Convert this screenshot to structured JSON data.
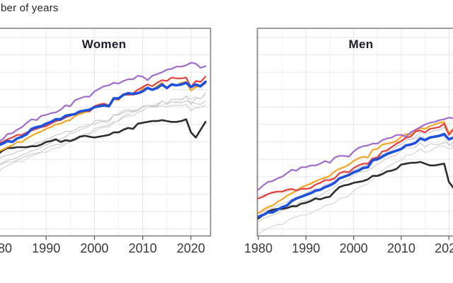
{
  "title": "ber of years",
  "panel_border_color": "#7d7d7d",
  "grid_color_major": "#e6e6e6",
  "grid_color_minor": "#f2f2f2",
  "tick_color": "#555555",
  "chart_data": {
    "type": "line",
    "title": "ber of years",
    "x_axis": {
      "tick_labels": [
        "1980",
        "1990",
        "2000",
        "2010",
        "2020"
      ],
      "range": [
        1980,
        2023
      ]
    },
    "y_axis": {
      "label_visible": false,
      "unit": "years",
      "gridline_step_years": 2
    },
    "legend_visible": false,
    "years": [
      1980,
      1981,
      1982,
      1983,
      1984,
      1985,
      1986,
      1987,
      1988,
      1989,
      1990,
      1991,
      1992,
      1993,
      1994,
      1995,
      1996,
      1997,
      1998,
      1999,
      2000,
      2001,
      2002,
      2003,
      2004,
      2005,
      2006,
      2007,
      2008,
      2009,
      2010,
      2011,
      2012,
      2013,
      2014,
      2015,
      2016,
      2017,
      2018,
      2019,
      2020,
      2021,
      2022,
      2023
    ],
    "facets": [
      {
        "name": "Women",
        "series": [
          {
            "name": "gray-line-1",
            "color": "#c7c7c7",
            "width": 1.1,
            "values": [
              76.2,
              76.4,
              76.7,
              76.8,
              77.0,
              77.3,
              77.5,
              77.8,
              77.9,
              78.2,
              78.5,
              78.7,
              79.0,
              79.1,
              79.4,
              79.8,
              79.9,
              80.2,
              80.4,
              80.6,
              81.2,
              81.3,
              81.2,
              81.3,
              81.9,
              82.0,
              82.4,
              82.5,
              82.4,
              82.5,
              82.9,
              83.0,
              82.9,
              82.9,
              83.5,
              83.1,
              83.4,
              83.3,
              83.3,
              83.5,
              83.4,
              83.2,
              83.1,
              83.5
            ]
          },
          {
            "name": "gray-line-2",
            "color": "#cccccc",
            "width": 1.1,
            "values": [
              76.0,
              76.3,
              76.5,
              76.5,
              76.7,
              77.0,
              77.2,
              77.4,
              77.5,
              77.7,
              78.1,
              78.3,
              78.5,
              78.5,
              78.9,
              79.0,
              79.3,
              79.5,
              79.7,
              79.8,
              80.3,
              80.5,
              80.6,
              80.7,
              81.1,
              81.2,
              81.6,
              81.8,
              81.8,
              82.2,
              82.4,
              82.8,
              82.8,
              82.8,
              83.0,
              82.8,
              83.0,
              83.0,
              83.0,
              83.1,
              82.4,
              82.7,
              82.8,
              83.0
            ]
          },
          {
            "name": "gray-line-3",
            "color": "#c7c7c7",
            "width": 1.1,
            "values": [
              76.8,
              77.1,
              77.3,
              77.4,
              77.7,
              77.8,
              78.1,
              78.4,
              78.6,
              78.8,
              79.1,
              79.3,
              79.6,
              79.7,
              80.0,
              80.0,
              80.2,
              80.5,
              80.6,
              80.8,
              80.8,
              81.1,
              81.1,
              81.1,
              81.9,
              81.9,
              82.2,
              82.3,
              82.3,
              82.5,
              82.8,
              83.0,
              82.9,
              83.0,
              83.5,
              83.2,
              83.7,
              83.7,
              83.7,
              84.0,
              83.1,
              83.8,
              83.8,
              84.2
            ]
          },
          {
            "name": "gray-line-4",
            "color": "#d2d2d2",
            "width": 1.1,
            "values": [
              75.2,
              75.8,
              76.1,
              76.3,
              76.6,
              76.5,
              76.9,
              77.2,
              77.4,
              77.6,
              77.6,
              77.9,
              78.1,
              78.2,
              78.6,
              78.8,
              79.0,
              79.4,
              79.5,
              79.7,
              80.0,
              80.3,
              80.5,
              80.5,
              81.0,
              81.3,
              81.8,
              82.0,
              82.2,
              82.4,
              82.8,
              83.0,
              83.0,
              83.2,
              83.5,
              83.2,
              83.4,
              83.4,
              83.5,
              84.1,
              83.7,
              84.0,
              83.7,
              84.5
            ]
          },
          {
            "name": "black-line",
            "color": "#2d2d2d",
            "width": 2.6,
            "values": [
              77.4,
              77.8,
              78.1,
              78.1,
              78.2,
              78.2,
              78.2,
              78.3,
              78.3,
              78.5,
              78.8,
              78.9,
              79.1,
              78.8,
              79.0,
              78.9,
              79.1,
              79.4,
              79.5,
              79.4,
              79.3,
              79.4,
              79.5,
              79.6,
              79.9,
              79.9,
              80.2,
              80.4,
              80.3,
              80.9,
              81.0,
              81.1,
              81.2,
              81.2,
              81.3,
              81.2,
              81.1,
              81.1,
              81.2,
              81.4,
              79.9,
              79.3,
              80.2,
              81.1
            ]
          },
          {
            "name": "orange-line",
            "color": "#f5a522",
            "width": 2.2,
            "values": [
              77.7,
              77.9,
              78.2,
              78.4,
              78.8,
              78.8,
              79.2,
              79.5,
              79.8,
              80.0,
              80.3,
              80.5,
              80.8,
              80.9,
              81.2,
              81.3,
              81.8,
              82.0,
              82.2,
              82.3,
              82.8,
              83.0,
              83.1,
              82.9,
              83.8,
              83.6,
              84.2,
              84.2,
              84.2,
              84.4,
              84.9,
              85.0,
              84.8,
              85.2,
              85.6,
              84.9,
              85.5,
              85.3,
              85.6,
              85.7,
              84.7,
              85.1,
              85.2,
              85.5
            ]
          },
          {
            "name": "red-line",
            "color": "#e3403c",
            "width": 2.2,
            "values": [
              78.6,
              78.8,
              79.1,
              79.3,
              79.6,
              79.6,
              79.9,
              80.1,
              80.3,
              80.5,
              80.6,
              80.9,
              81.2,
              81.3,
              81.6,
              81.8,
              82.0,
              82.2,
              82.4,
              82.3,
              82.9,
              83.1,
              83.2,
              83.0,
              83.7,
              83.7,
              84.3,
              84.2,
              84.4,
              84.8,
              85.1,
              85.4,
              85.2,
              85.6,
              85.9,
              85.8,
              86.2,
              86.1,
              86.1,
              86.2,
              85.1,
              85.8,
              85.7,
              86.3
            ]
          },
          {
            "name": "purple-line",
            "color": "#a06ccb",
            "width": 2.2,
            "values": [
              78.8,
              79.1,
              79.7,
              79.8,
              80.2,
              80.5,
              81.0,
              81.4,
              81.3,
              81.8,
              81.9,
              82.1,
              82.2,
              82.5,
              83.0,
              82.9,
              83.6,
              83.8,
              84.0,
              84.0,
              84.6,
              84.9,
              85.2,
              85.3,
              85.6,
              85.5,
              85.8,
              86.0,
              86.0,
              86.4,
              86.3,
              85.9,
              86.4,
              86.6,
              86.8,
              87.1,
              87.2,
              87.45,
              87.45,
              87.6,
              87.9,
              87.8,
              87.3,
              87.5
            ]
          },
          {
            "name": "blue-thick-line",
            "color": "#1d50dc",
            "width": 3.6,
            "values": [
              78.4,
              78.6,
              78.9,
              78.8,
              79.2,
              79.4,
              79.7,
              80.3,
              80.5,
              80.6,
              80.9,
              81.1,
              81.4,
              81.4,
              81.8,
              81.9,
              82.0,
              82.3,
              82.4,
              82.5,
              82.8,
              82.9,
              83.0,
              82.9,
              83.8,
              83.8,
              84.2,
              84.4,
              84.3,
              84.4,
              84.6,
              85.0,
              84.8,
              85.0,
              85.4,
              85.0,
              85.4,
              85.3,
              85.4,
              85.6,
              85.1,
              85.4,
              85.2,
              85.7
            ]
          }
        ]
      },
      {
        "name": "Men",
        "series": [
          {
            "name": "gray-line-1",
            "color": "#c7c7c7",
            "width": 1.1,
            "values": [
              72.5,
              72.7,
              72.8,
              72.9,
              73.0,
              73.0,
              73.1,
              73.3,
              73.3,
              73.7,
              73.8,
              74.0,
              74.3,
              74.0,
              74.6,
              74.6,
              74.7,
              75.2,
              75.2,
              75.3,
              75.5,
              75.8,
              76.0,
              76.2,
              76.9,
              77.2,
              77.6,
              78.0,
              78.3,
              78.5,
              78.8,
              79.2,
              79.1,
              79.4,
              79.9,
              79.7,
              79.9,
              80.1,
              80.2,
              80.5,
              79.7,
              79.7,
              80.1,
              80.3
            ]
          },
          {
            "name": "gray-line-2",
            "color": "#cccccc",
            "width": 1.1,
            "values": [
              69.6,
              70.0,
              70.2,
              70.4,
              70.6,
              71.0,
              71.2,
              71.5,
              71.6,
              72.0,
              72.0,
              72.2,
              72.5,
              72.6,
              73.0,
              73.3,
              73.6,
              74.0,
              74.3,
              74.5,
              75.0,
              75.3,
              75.4,
              75.5,
              75.9,
              76.2,
              76.6,
              76.9,
              77.1,
              77.3,
              77.9,
              78.1,
              78.1,
              78.2,
              78.7,
              78.2,
              78.6,
              78.5,
              78.5,
              78.7,
              78.6,
              78.2,
              78.1,
              78.6
            ]
          },
          {
            "name": "gray-line-3",
            "color": "#c7c7c7",
            "width": 1.1,
            "values": [
              70.2,
              70.8,
              71.1,
              71.2,
              71.5,
              71.7,
              71.9,
              72.2,
              72.4,
              72.6,
              72.9,
              73.2,
              73.4,
              73.4,
              73.9,
              74.0,
              74.3,
              74.6,
              74.8,
              75.0,
              75.5,
              75.8,
              76.0,
              76.2,
              76.7,
              77.1,
              77.3,
              77.6,
              77.8,
              78.3,
              78.5,
              79.0,
              79.1,
              79.2,
              79.5,
              79.2,
              79.4,
              79.5,
              79.5,
              79.4,
              78.4,
              78.7,
              78.8,
              79.1
            ]
          },
          {
            "name": "gray-line-4",
            "color": "#d2d2d2",
            "width": 1.1,
            "values": [
              68.2,
              68.6,
              68.9,
              69.1,
              69.3,
              69.3,
              69.7,
              70.0,
              70.2,
              70.4,
              70.4,
              70.6,
              70.9,
              71.1,
              71.5,
              71.6,
              71.8,
              72.3,
              72.4,
              72.6,
              73.2,
              73.5,
              73.8,
              74.0,
              74.5,
              74.9,
              75.5,
              75.9,
              76.2,
              76.5,
              76.7,
              77.3,
              77.3,
              77.6,
              78.0,
              77.6,
              77.7,
              78.1,
              78.3,
              78.3,
              78.0,
              78.1,
              78.1,
              78.4
            ]
          },
          {
            "name": "black-line",
            "color": "#2d2d2d",
            "width": 2.6,
            "values": [
              70.0,
              70.4,
              70.8,
              71.0,
              71.1,
              71.1,
              71.2,
              71.4,
              71.4,
              71.7,
              71.8,
              72.0,
              72.3,
              72.2,
              72.4,
              72.5,
              73.1,
              73.6,
              73.8,
              73.9,
              74.1,
              74.2,
              74.3,
              74.5,
              74.9,
              74.9,
              75.1,
              75.4,
              75.5,
              75.7,
              76.2,
              76.3,
              76.4,
              76.4,
              76.5,
              76.3,
              76.1,
              76.1,
              76.2,
              76.3,
              74.2,
              73.5,
              74.8,
              75.8
            ]
          },
          {
            "name": "orange-line",
            "color": "#f5a522",
            "width": 2.2,
            "values": [
              70.6,
              71.0,
              71.3,
              71.5,
              71.9,
              72.2,
              72.6,
              72.9,
              73.2,
              73.5,
              73.8,
              74.0,
              74.3,
              74.5,
              74.7,
              74.9,
              75.4,
              75.7,
              75.9,
              76.2,
              76.6,
              76.9,
              77.1,
              77.0,
              77.9,
              78.0,
              78.5,
              78.6,
              78.7,
              78.9,
              79.4,
              79.7,
              79.6,
              80.0,
              80.4,
              80.3,
              80.6,
              80.8,
              81.0,
              81.1,
              79.8,
              80.3,
              80.7,
              81.1
            ]
          },
          {
            "name": "red-line",
            "color": "#e3403c",
            "width": 2.2,
            "values": [
              72.3,
              72.5,
              72.8,
              73.0,
              73.1,
              73.1,
              73.3,
              73.4,
              73.2,
              73.4,
              73.4,
              73.5,
              73.9,
              74.1,
              74.4,
              74.4,
              74.6,
              75.2,
              75.4,
              75.3,
              75.8,
              76.1,
              76.3,
              76.3,
              76.9,
              77.0,
              77.7,
              77.8,
              78.2,
              78.6,
              78.9,
              79.3,
              79.4,
              80.0,
              80.1,
              79.9,
              80.3,
              80.4,
              80.5,
              80.9,
              79.6,
              80.3,
              80.4,
              81.1
            ]
          },
          {
            "name": "purple-line",
            "color": "#a06ccb",
            "width": 2.2,
            "values": [
              73.3,
              73.8,
              74.2,
              74.3,
              74.6,
              74.8,
              75.2,
              75.6,
              75.5,
              75.9,
              75.9,
              76.1,
              76.1,
              76.3,
              76.6,
              76.4,
              77.0,
              77.2,
              77.2,
              77.1,
              77.7,
              78.1,
              78.3,
              78.4,
              78.6,
              78.6,
              79.0,
              79.2,
              79.3,
              79.6,
              79.6,
              79.4,
              79.9,
              80.2,
              80.5,
              80.8,
              81.0,
              81.1,
              81.3,
              81.4,
              81.6,
              81.5,
              81.1,
              81.1
            ]
          },
          {
            "name": "blue-thick-line",
            "color": "#1d50dc",
            "width": 3.6,
            "values": [
              70.2,
              70.4,
              70.7,
              70.7,
              71.0,
              71.3,
              71.5,
              72.0,
              72.3,
              72.5,
              72.7,
              72.9,
              73.2,
              73.3,
              73.6,
              73.8,
              74.1,
              74.6,
              74.8,
              75.0,
              75.3,
              75.5,
              75.8,
              75.9,
              76.7,
              76.8,
              77.1,
              77.4,
              77.6,
              77.8,
              78.0,
              78.4,
              78.5,
              78.7,
              79.2,
              79.0,
              79.3,
              79.4,
              79.5,
              79.7,
              79.1,
              79.3,
              79.3,
              80.0
            ]
          }
        ]
      }
    ]
  }
}
